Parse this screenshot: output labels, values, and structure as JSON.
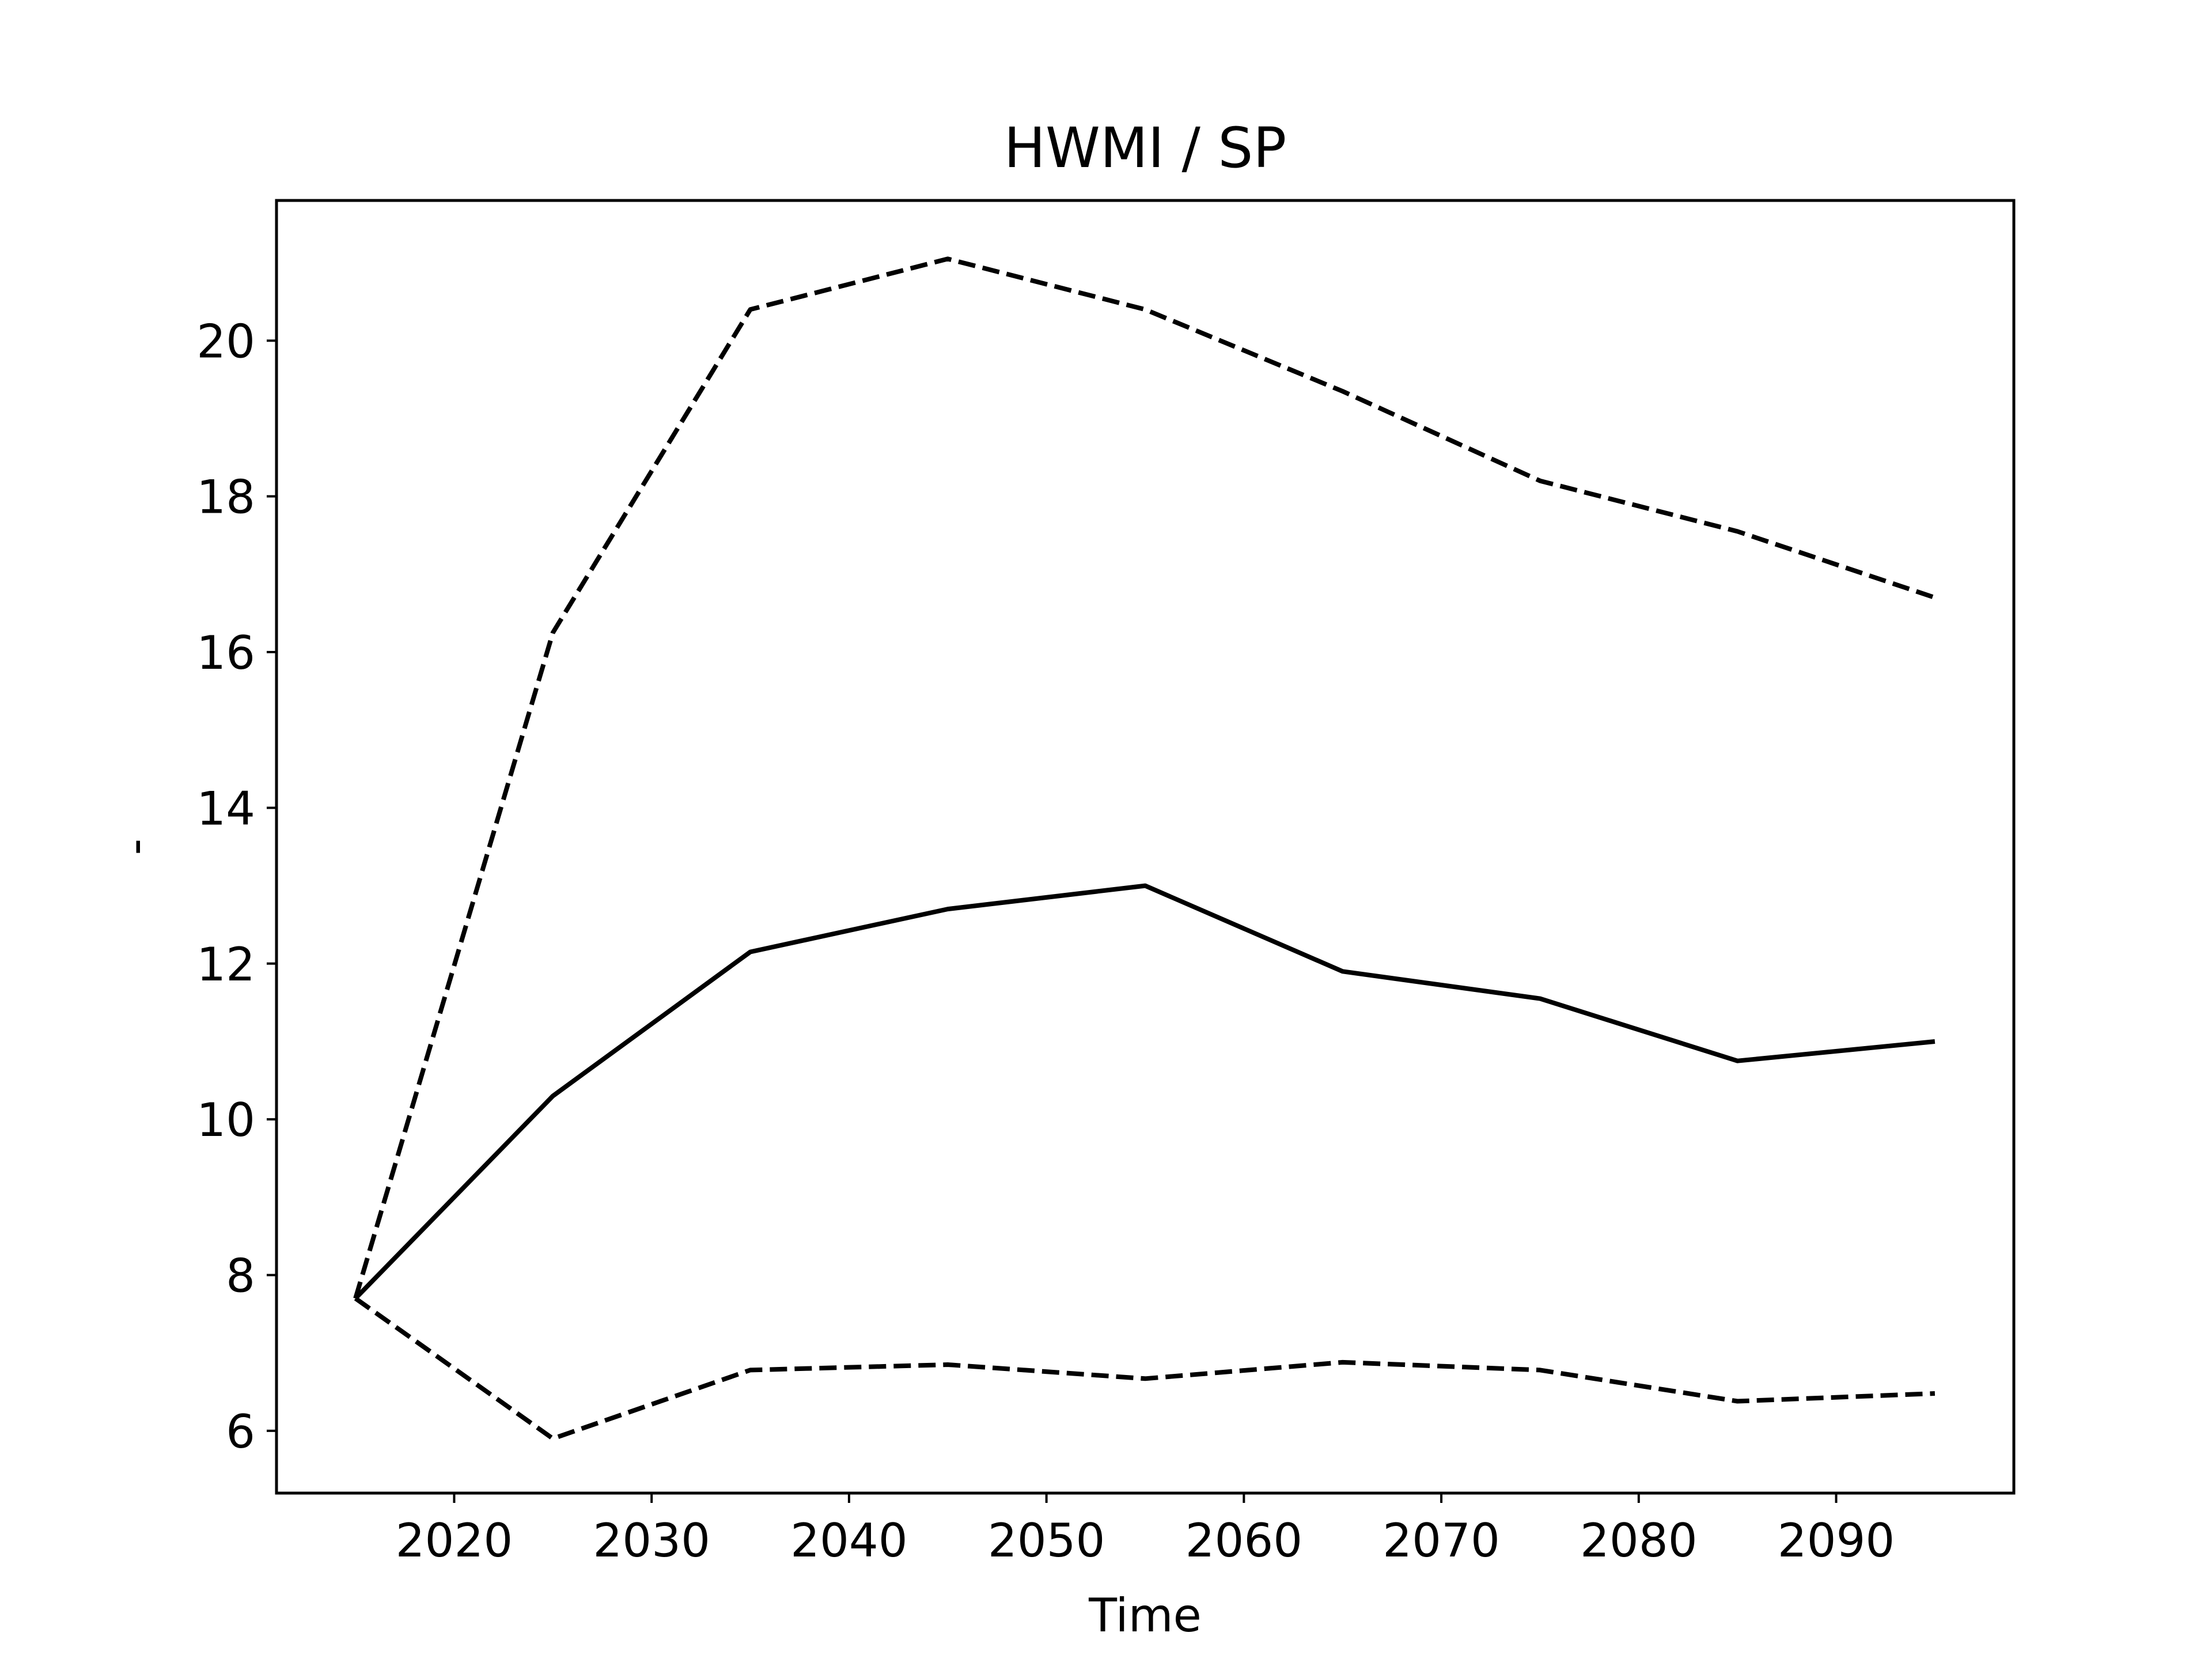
{
  "chart_data": {
    "type": "line",
    "title": "HWMI / SP",
    "xlabel": "Time",
    "ylabel": "-",
    "xlim": [
      2011,
      2099
    ],
    "ylim": [
      5.2,
      21.8
    ],
    "xticks": [
      2020,
      2030,
      2040,
      2050,
      2060,
      2070,
      2080,
      2090
    ],
    "yticks": [
      6,
      8,
      10,
      12,
      14,
      16,
      18,
      20
    ],
    "grid": false,
    "legend": "none",
    "x": [
      2015,
      2025,
      2035,
      2045,
      2055,
      2065,
      2075,
      2085,
      2095
    ],
    "series": [
      {
        "style": "solid",
        "color": "#000000",
        "values": [
          7.7,
          10.3,
          12.15,
          12.7,
          13.0,
          11.9,
          11.55,
          10.75,
          11.0
        ]
      },
      {
        "style": "dashed",
        "color": "#000000",
        "values": [
          7.7,
          16.25,
          20.4,
          21.05,
          20.4,
          19.35,
          18.2,
          17.55,
          16.7
        ]
      },
      {
        "style": "dashed",
        "color": "#000000",
        "values": [
          7.7,
          5.9,
          6.78,
          6.85,
          6.67,
          6.88,
          6.78,
          6.38,
          6.48
        ]
      }
    ]
  }
}
